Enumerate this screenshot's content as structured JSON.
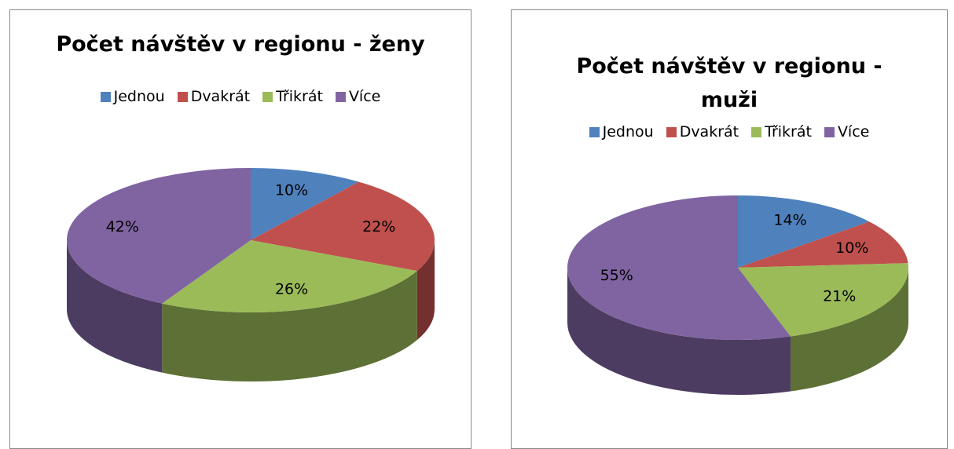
{
  "chart_data": [
    {
      "type": "pie",
      "title": "Počet návštěv v regionu - ženy",
      "categories": [
        "Jednou",
        "Dvakrát",
        "Třikrát",
        "Více"
      ],
      "values": [
        10,
        22,
        26,
        42
      ],
      "value_labels": [
        "10%",
        "22%",
        "26%",
        "42%"
      ],
      "colors": [
        "#4f81bd",
        "#c0504d",
        "#9bbb59",
        "#8064a2"
      ],
      "legend": "top"
    },
    {
      "type": "pie",
      "title": "Počet návštěv v regionu - muži",
      "categories": [
        "Jednou",
        "Dvakrát",
        "Třikrát",
        "Více"
      ],
      "values": [
        14,
        10,
        21,
        55
      ],
      "value_labels": [
        "14%",
        "10%",
        "21%",
        "55%"
      ],
      "colors": [
        "#4f81bd",
        "#c0504d",
        "#9bbb59",
        "#8064a2"
      ],
      "legend": "top"
    }
  ]
}
